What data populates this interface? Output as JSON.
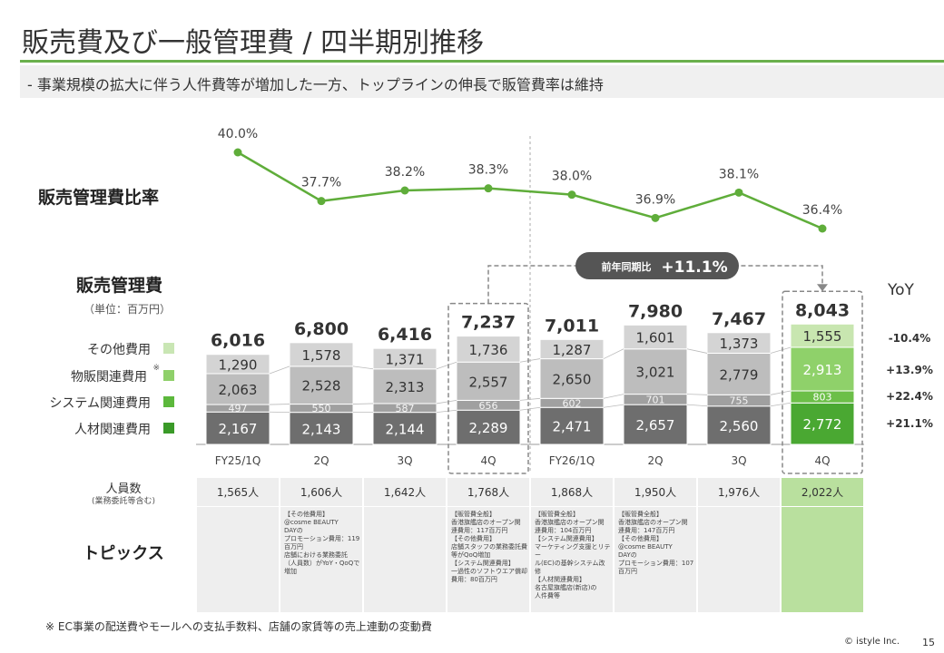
{
  "title": "販売費及び一般管理費 / 四半期別推移",
  "subtitle": "- 事業規模の拡大に伴う人件費等が増加した一方、トップラインの伸長で販管費率は維持",
  "ratio_label": "販売管理費比率",
  "cost_label": "販売管理費",
  "unit_label": "（単位：百万円）",
  "legend": [
    {
      "label": "その他費用",
      "note": "",
      "color": "#c9e6b4"
    },
    {
      "label": "物販関連費用",
      "note": "※",
      "color": "#8fd06a"
    },
    {
      "label": "システム関連費用",
      "note": "",
      "color": "#5cb83c"
    },
    {
      "label": "人材関連費用",
      "note": "",
      "color": "#3a9a28"
    }
  ],
  "yoy": {
    "header": "YoY",
    "values": [
      "-10.4%",
      "+13.9%",
      "+22.4%",
      "+21.1%"
    ]
  },
  "callout": {
    "label": "前年同期比",
    "value": "+11.1%"
  },
  "colors": {
    "accent": "#6ab04c",
    "line": "#5fad3a",
    "grey_top": "#d4d4d4",
    "grey_mid": "#bdbdbd",
    "grey_low": "#a0a0a0",
    "grey_base": "#6e6e6e",
    "green_top": "#c8e6b0",
    "green_mid": "#8fd16a",
    "green_low": "#6cbf48",
    "green_base": "#4aa832"
  },
  "chart_data": [
    {
      "type": "line",
      "categories": [
        "FY25/1Q",
        "2Q",
        "3Q",
        "4Q",
        "FY26/1Q",
        "2Q",
        "3Q",
        "4Q"
      ],
      "values": [
        40.0,
        37.7,
        38.2,
        38.3,
        38.0,
        36.9,
        38.1,
        36.4
      ],
      "data_labels": [
        "40.0%",
        "37.7%",
        "38.2%",
        "38.3%",
        "38.0%",
        "36.9%",
        "38.1%",
        "36.4%"
      ],
      "title": "販売管理費比率"
    },
    {
      "type": "bar",
      "stacked": true,
      "categories": [
        "FY25/1Q",
        "2Q",
        "3Q",
        "4Q",
        "FY26/1Q",
        "2Q",
        "3Q",
        "4Q"
      ],
      "series": [
        {
          "name": "人材関連費用",
          "values": [
            2167,
            2143,
            2144,
            2289,
            2471,
            2657,
            2560,
            2772
          ]
        },
        {
          "name": "システム関連費用",
          "values": [
            497,
            550,
            587,
            656,
            602,
            701,
            755,
            803
          ]
        },
        {
          "name": "物販関連費用",
          "values": [
            2063,
            2528,
            2313,
            2557,
            2650,
            3021,
            2779,
            2913
          ]
        },
        {
          "name": "その他費用",
          "values": [
            1290,
            1578,
            1371,
            1736,
            1287,
            1601,
            1373,
            1555
          ]
        }
      ],
      "totals": [
        6016,
        6800,
        6416,
        7237,
        7011,
        7980,
        7467,
        8043
      ],
      "title": "販売管理費",
      "ylabel": "（単位：百万円）",
      "legend_position": "left"
    }
  ],
  "table": {
    "headcount_label": "人員数",
    "headcount_sub": "(業務委託等含む)",
    "headcount": [
      "1,565人",
      "1,606人",
      "1,642人",
      "1,768人",
      "1,868人",
      "1,950人",
      "1,976人",
      "2,022人"
    ],
    "topics_label": "トピックス",
    "topics": [
      [],
      [
        "【その他費用】",
        "@cosme BEAUTY",
        "DAYの",
        "プロモーション費用：119",
        "百万円",
        "店舗における業務委託",
        "（人員数）がYoY・QoQで",
        "増加"
      ],
      [],
      [
        "【販管費全般】",
        "香港旗艦店のオープン関",
        "連費用：117百万円",
        "【その他費用】",
        "店舗スタッフの業務委託費",
        "等がQoQ増加",
        "【システム関連費用】",
        "一過性のソフトウエア償却",
        "費用：80百万円"
      ],
      [
        "【販管費全般】",
        "香港旗艦店のオープン関",
        "連費用：104百万円",
        "【システム関連費用】",
        "マーケティング支援とリテー",
        "ル(EC)の基幹システム改",
        "修",
        "【人材関連費用】",
        "名古屋旗艦店(新店)の",
        "人件費等"
      ],
      [
        "【販管費全般】",
        "香港旗艦店のオープン関",
        "連費用：147百万円",
        "【その他費用】",
        "@cosme BEAUTY",
        "DAYの",
        "プロモーション費用：107",
        "百万円"
      ],
      [],
      []
    ]
  },
  "footnote": "※ EC事業の配送費やモールへの支払手数料、店舗の家賃等の売上連動の変動費",
  "copyright": "© istyle Inc.",
  "page_number": "15"
}
